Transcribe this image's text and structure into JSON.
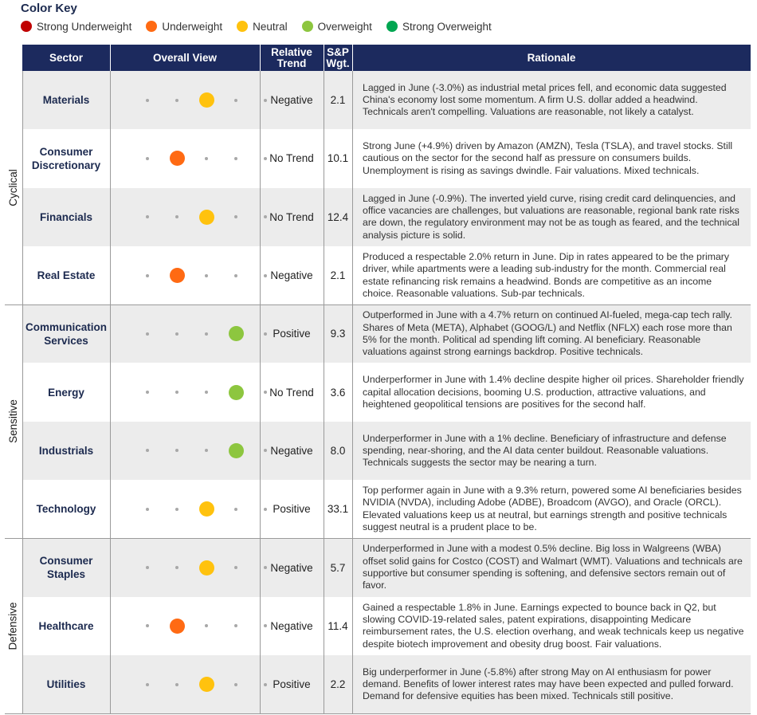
{
  "color_key": {
    "title": "Color Key",
    "items": [
      {
        "label": "Strong Underweight",
        "color": "#c00000"
      },
      {
        "label": "Underweight",
        "color": "#ff6a13"
      },
      {
        "label": "Neutral",
        "color": "#ffc20e"
      },
      {
        "label": "Overweight",
        "color": "#8dc63f"
      },
      {
        "label": "Strong Overweight",
        "color": "#00a651"
      }
    ]
  },
  "headers": {
    "sector": "Sector",
    "overall_view": "Overall View",
    "relative_trend_1": "Relative",
    "relative_trend_2": "Trend",
    "weight_1": "S&P",
    "weight_2": "Wgt.",
    "rationale": "Rationale"
  },
  "view_scale": [
    "Strong Underweight",
    "Underweight",
    "Neutral",
    "Overweight",
    "Strong Overweight"
  ],
  "groups": [
    {
      "label": "Cyclical",
      "rows": 4
    },
    {
      "label": "Sensitive",
      "rows": 4
    },
    {
      "label": "Defensive",
      "rows": 3
    }
  ],
  "rows": [
    {
      "sector": [
        "Materials"
      ],
      "view": "Neutral",
      "view_index": 2,
      "trend": "Negative",
      "weight": "2.1",
      "rationale": "Lagged in June (-3.0%) as industrial metal prices fell, and economic data suggested China's economy lost some momentum. A firm U.S. dollar added a headwind. Technicals aren't compelling. Valuations are reasonable, not likely a catalyst."
    },
    {
      "sector": [
        "Consumer",
        "Discretionary"
      ],
      "view": "Underweight",
      "view_index": 1,
      "trend": "No Trend",
      "weight": "10.1",
      "rationale": "Strong June (+4.9%) driven by Amazon (AMZN), Tesla (TSLA), and travel stocks. Still cautious on the sector for the second half as pressure on consumers builds. Unemployment is rising as savings dwindle. Fair valuations. Mixed technicals."
    },
    {
      "sector": [
        "Financials"
      ],
      "view": "Neutral",
      "view_index": 2,
      "trend": "No Trend",
      "weight": "12.4",
      "rationale": "Lagged in June (-0.9%). The inverted yield curve, rising credit card delinquencies, and office vacancies are challenges, but valuations are reasonable, regional bank rate risks are down, the regulatory environment may not be as tough as feared, and the technical analysis picture is solid."
    },
    {
      "sector": [
        "Real Estate"
      ],
      "view": "Underweight",
      "view_index": 1,
      "trend": "Negative",
      "weight": "2.1",
      "rationale": "Produced a respectable 2.0% return in June. Dip in rates appeared to be the primary driver, while apartments were a leading sub-industry for the month. Commercial real estate refinancing risk remains a headwind. Bonds are competitive as an income choice. Reasonable valuations. Sub-par technicals."
    },
    {
      "sector": [
        "Communication",
        "Services"
      ],
      "view": "Overweight",
      "view_index": 3,
      "trend": "Positive",
      "weight": "9.3",
      "rationale": "Outperformed in June with a 4.7% return on continued AI-fueled, mega-cap tech rally. Shares of Meta (META), Alphabet (GOOG/L) and Netflix (NFLX) each rose more than 5% for the month. Political ad spending lift coming. AI beneficiary. Reasonable valuations against strong earnings backdrop. Positive technicals."
    },
    {
      "sector": [
        "Energy"
      ],
      "view": "Overweight",
      "view_index": 3,
      "trend": "No Trend",
      "weight": "3.6",
      "rationale": "Underperformer in June with 1.4% decline despite higher oil prices. Shareholder friendly capital allocation decisions, booming U.S. production, attractive valuations, and heightened geopolitical tensions are positives for the second half."
    },
    {
      "sector": [
        "Industrials"
      ],
      "view": "Overweight",
      "view_index": 3,
      "trend": "Negative",
      "weight": "8.0",
      "rationale": "Underperformer in June with a 1% decline. Beneficiary of infrastructure and defense spending, near-shoring, and the AI data center buildout. Reasonable valuations. Technicals suggests the sector may be nearing a turn."
    },
    {
      "sector": [
        "Technology"
      ],
      "view": "Neutral",
      "view_index": 2,
      "trend": "Positive",
      "weight": "33.1",
      "rationale": "Top performer again in June with a 9.3% return, powered some AI beneficiaries besides NVIDIA (NVDA), including Adobe (ADBE), Broadcom (AVGO), and Oracle (ORCL). Elevated valuations keep us at neutral, but earnings strength and positive technicals suggest neutral is a prudent place to be."
    },
    {
      "sector": [
        "Consumer",
        "Staples"
      ],
      "view": "Neutral",
      "view_index": 2,
      "trend": "Negative",
      "weight": "5.7",
      "rationale": "Underperformed in June with a modest 0.5% decline. Big loss in Walgreens (WBA) offset solid gains for Costco (COST) and Walmart (WMT). Valuations and technicals are supportive but consumer spending is softening, and defensive sectors remain out of favor."
    },
    {
      "sector": [
        "Healthcare"
      ],
      "view": "Underweight",
      "view_index": 1,
      "trend": "Negative",
      "weight": "11.4",
      "rationale": "Gained a respectable 1.8% in June. Earnings expected to bounce back in Q2, but slowing COVID-19-related sales, patent expirations, disappointing Medicare reimbursement rates, the U.S. election overhang, and weak technicals keep us negative despite biotech improvement and obesity drug boost. Fair valuations."
    },
    {
      "sector": [
        "Utilities"
      ],
      "view": "Neutral",
      "view_index": 2,
      "trend": "Positive",
      "weight": "2.2",
      "rationale": "Big underperformer in June (-5.8%) after strong May on AI enthusiasm for power demand. Benefits of lower interest rates may have been expected and pulled forward. Demand for defensive equities has been mixed. Technicals still positive."
    }
  ]
}
